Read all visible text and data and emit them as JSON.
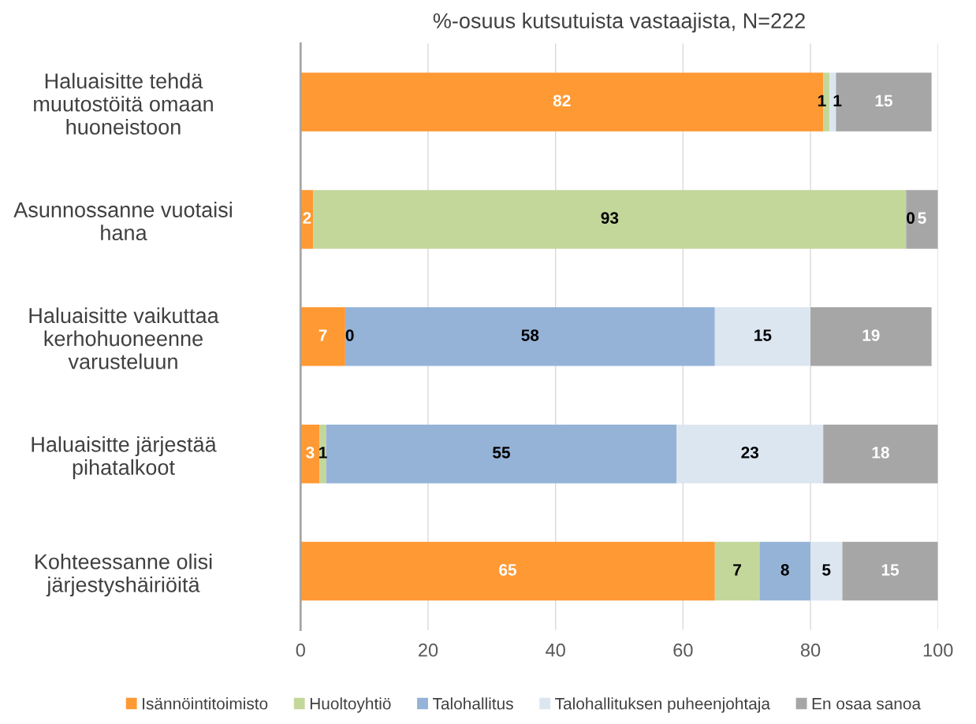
{
  "chart_data": {
    "type": "bar",
    "orientation": "horizontal",
    "stacked": true,
    "title": "%-osuus kutsutuista vastaajista, N=222",
    "categories": [
      "Haluaisitte tehdä\nmuutostöitä omaan\nhuoneistoon",
      "Asunnossanne vuotaisi\nhana",
      "Haluaisitte vaikuttaa\nkerhohuoneenne\nvarusteluun",
      "Haluaisitte järjestää\npihatalkoot",
      "Kohteessanne olisi\njärjestyshäiriöitä"
    ],
    "series": [
      {
        "name": "Isännöintitoimisto",
        "color": "#ff9933",
        "values": [
          82,
          2,
          7,
          3,
          65
        ],
        "value_labels": [
          "82",
          "2",
          "7",
          "3",
          "65"
        ]
      },
      {
        "name": "Huoltoyhtiö",
        "color": "#c4d79b",
        "values": [
          1,
          93,
          null,
          1,
          7
        ],
        "value_labels": [
          "1",
          "93",
          null,
          "1",
          "7"
        ]
      },
      {
        "name": "Talohallitus",
        "color": "#95b3d7",
        "values": [
          null,
          null,
          58,
          55,
          8
        ],
        "value_labels": [
          null,
          null,
          "58",
          "55",
          "8"
        ]
      },
      {
        "name": "Talohallituksen puheenjohtaja",
        "color": "#dce6f1",
        "values": [
          1,
          null,
          15,
          23,
          5
        ],
        "value_labels": [
          "1",
          null,
          "15",
          "23",
          "5"
        ]
      },
      {
        "name": "En osaa sanoa",
        "color": "#a6a6a6",
        "values": [
          15,
          5,
          19,
          18,
          15
        ],
        "value_labels": [
          "15",
          "5",
          "19",
          "18",
          "15"
        ]
      }
    ],
    "annotations": [
      {
        "text": "0",
        "x": 95,
        "y": "Asunnossanne vuotaisi\nhana"
      },
      {
        "text": "0",
        "x": 7,
        "y": "Haluaisitte vaikuttaa\nkerhohuoneenne\nvarusteluun"
      }
    ],
    "xlim": [
      0,
      100
    ],
    "xticks": [
      0,
      20,
      40,
      60,
      80,
      100
    ],
    "grid": "x",
    "legend": "bottom"
  }
}
